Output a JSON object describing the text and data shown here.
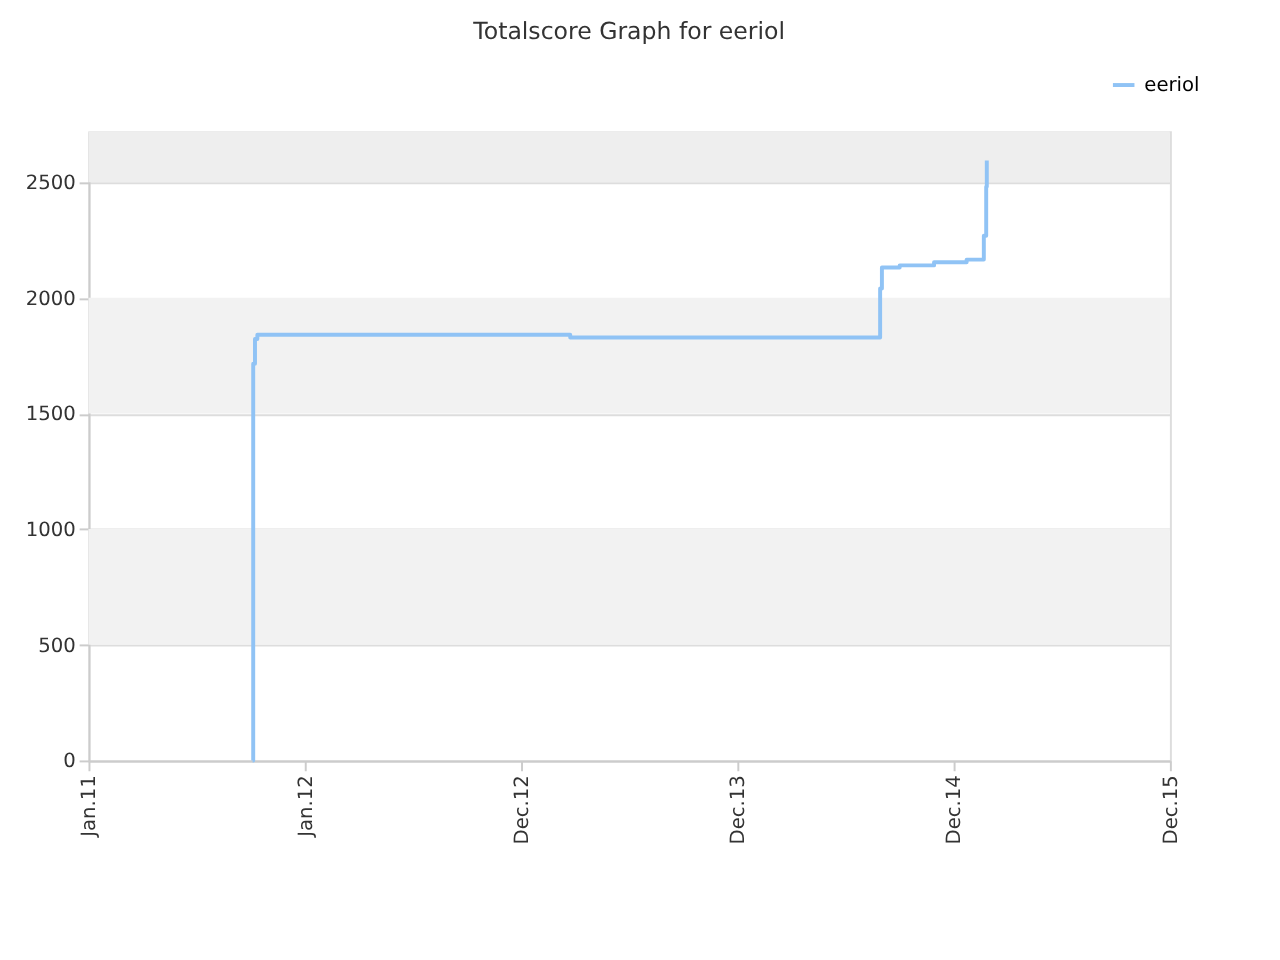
{
  "chart_data": {
    "type": "step",
    "title": "Totalscore Graph for eeriol",
    "series": [
      {
        "name": "eeriol",
        "color": "#90c3f5",
        "x": [
          "2011-10-05",
          "2011-10-06",
          "2011-10-09",
          "2011-10-13",
          "2013-03-24",
          "2014-08-29",
          "2014-09-01",
          "2014-10-01",
          "2014-11-28",
          "2015-01-22",
          "2015-02-20",
          "2015-02-24",
          "2015-02-25"
        ],
        "values": [
          0,
          1715,
          1822,
          1840,
          1828,
          2040,
          2131,
          2140,
          2154,
          2165,
          2268,
          2480,
          2593
        ]
      }
    ],
    "xlim": [
      "2011-01-01",
      "2015-12-31"
    ],
    "xticks": [
      {
        "value": "2011-01-01",
        "label": "Jan.11"
      },
      {
        "value": "2012-01-01",
        "label": "Jan.12"
      },
      {
        "value": "2012-12-31",
        "label": "Dec.12"
      },
      {
        "value": "2013-12-31",
        "label": "Dec.13"
      },
      {
        "value": "2014-12-31",
        "label": "Dec.14"
      },
      {
        "value": "2015-12-31",
        "label": "Dec.15"
      }
    ],
    "ylim": [
      0,
      2720
    ],
    "yticks": [
      0,
      500,
      1000,
      1500,
      2000,
      2500
    ],
    "bands": [
      {
        "axis": "y",
        "from": 500,
        "to": 1000,
        "color": "#f2f2f2"
      },
      {
        "axis": "y",
        "from": 1500,
        "to": 2000,
        "color": "#f2f2f2"
      },
      {
        "axis": "y",
        "from": 2500,
        "to": 2720,
        "color": "#eeeeee"
      }
    ],
    "grid": "y",
    "legend": "top right"
  }
}
